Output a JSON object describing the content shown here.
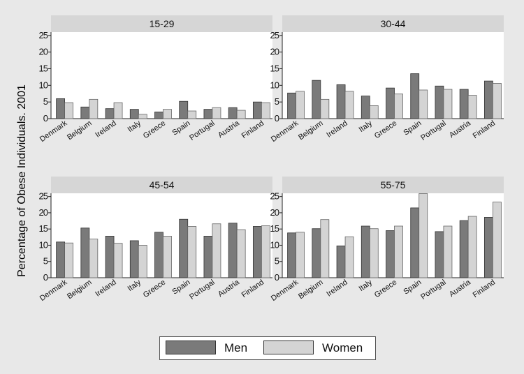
{
  "chart_data": {
    "type": "bar",
    "ylabel": "Percentage of Obese Individuals. 2001",
    "yticks": [
      0,
      5,
      10,
      15,
      20,
      25
    ],
    "ylim": [
      0,
      26
    ],
    "categories": [
      "Denmark",
      "Belgium",
      "Ireland",
      "Italy",
      "Greece",
      "Spain",
      "Portugal",
      "Austria",
      "Finland"
    ],
    "legend": {
      "position": "bottom"
    },
    "series_names": [
      "Men",
      "Women"
    ],
    "colors": {
      "men": "#7a7a7a",
      "women": "#d4d4d4",
      "panel_header": "#d6d6d6",
      "plot_bg": "#ffffff"
    },
    "panels": [
      {
        "title": "15-29",
        "series": [
          {
            "name": "Men",
            "values": [
              6.0,
              3.5,
              3.0,
              2.8,
              2.0,
              5.2,
              2.8,
              3.3,
              5.0
            ]
          },
          {
            "name": "Women",
            "values": [
              4.8,
              5.8,
              4.8,
              1.3,
              2.8,
              2.3,
              3.3,
              2.5,
              4.8
            ]
          }
        ]
      },
      {
        "title": "30-44",
        "series": [
          {
            "name": "Men",
            "values": [
              7.7,
              11.5,
              10.2,
              6.8,
              9.2,
              13.5,
              9.8,
              8.8,
              11.3
            ]
          },
          {
            "name": "Women",
            "values": [
              8.2,
              5.8,
              8.2,
              3.9,
              7.4,
              8.6,
              8.8,
              7.0,
              10.6
            ]
          }
        ]
      },
      {
        "title": "45-54",
        "series": [
          {
            "name": "Men",
            "values": [
              11.0,
              15.3,
              12.8,
              11.4,
              14.0,
              18.0,
              12.8,
              16.8,
              15.8
            ]
          },
          {
            "name": "Women",
            "values": [
              10.7,
              11.9,
              10.6,
              10.0,
              12.8,
              15.8,
              16.6,
              14.8,
              16.0
            ]
          }
        ]
      },
      {
        "title": "55-75",
        "series": [
          {
            "name": "Men",
            "values": [
              13.8,
              15.1,
              9.8,
              15.9,
              14.5,
              21.5,
              14.2,
              17.6,
              18.6
            ]
          },
          {
            "name": "Women",
            "values": [
              14.0,
              17.9,
              12.6,
              15.1,
              15.9,
              25.9,
              15.9,
              18.9,
              23.3
            ]
          }
        ]
      }
    ]
  }
}
